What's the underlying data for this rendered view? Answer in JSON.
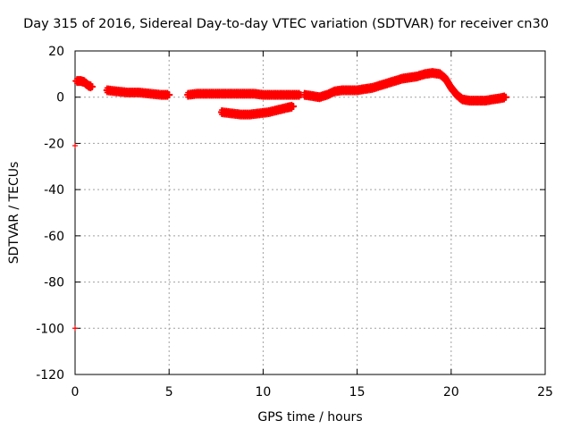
{
  "chart_data": {
    "type": "scatter",
    "title": "Day 315 of 2016, Sidereal Day-to-day VTEC variation (SDTVAR) for receiver cn30",
    "xlabel": "GPS time / hours",
    "ylabel": "SDTVAR / TECUs",
    "xlim": [
      0,
      25
    ],
    "ylim": [
      -120,
      20
    ],
    "xticks": [
      0,
      5,
      10,
      15,
      20,
      25
    ],
    "yticks": [
      20,
      0,
      -20,
      -40,
      -60,
      -80,
      -100,
      -120
    ],
    "grid": true,
    "marker": "+",
    "series_color": "#ff0000",
    "series": [
      {
        "name": "isolated points",
        "points": [
          [
            0.0,
            7
          ],
          [
            0.0,
            -21
          ],
          [
            0.0,
            -100
          ]
        ]
      },
      {
        "name": "arc 1",
        "points": [
          [
            0.1,
            7
          ],
          [
            0.3,
            7
          ],
          [
            0.5,
            6.5
          ],
          [
            0.7,
            5
          ],
          [
            0.9,
            4.5
          ]
        ]
      },
      {
        "name": "arc 2",
        "points": [
          [
            1.7,
            3
          ],
          [
            2.2,
            2.5
          ],
          [
            2.8,
            2
          ],
          [
            3.4,
            2
          ],
          [
            4.0,
            1.5
          ],
          [
            4.6,
            1
          ],
          [
            5.0,
            1
          ]
        ]
      },
      {
        "name": "arc 3",
        "points": [
          [
            6.0,
            1
          ],
          [
            6.5,
            1.5
          ],
          [
            7.0,
            1.5
          ],
          [
            7.5,
            1.5
          ],
          [
            8.0,
            1.5
          ],
          [
            8.5,
            1.5
          ],
          [
            9.0,
            1.5
          ],
          [
            9.5,
            1.5
          ],
          [
            10.0,
            1
          ],
          [
            10.5,
            1
          ],
          [
            11.0,
            1
          ],
          [
            11.5,
            1
          ],
          [
            12.0,
            1
          ]
        ]
      },
      {
        "name": "arc 4",
        "points": [
          [
            7.8,
            -6.5
          ],
          [
            8.3,
            -7
          ],
          [
            8.8,
            -7.5
          ],
          [
            9.3,
            -7.5
          ],
          [
            9.8,
            -7
          ],
          [
            10.3,
            -6.5
          ],
          [
            10.8,
            -5.5
          ],
          [
            11.3,
            -4.5
          ],
          [
            11.6,
            -4
          ]
        ]
      },
      {
        "name": "arc 5",
        "points": [
          [
            12.2,
            1
          ],
          [
            12.6,
            0.5
          ],
          [
            13.0,
            0
          ],
          [
            13.4,
            1
          ],
          [
            13.8,
            2.5
          ],
          [
            14.2,
            3
          ],
          [
            14.6,
            3
          ],
          [
            15.0,
            3
          ],
          [
            15.4,
            3.5
          ],
          [
            15.8,
            4
          ],
          [
            16.2,
            5
          ],
          [
            16.6,
            6
          ],
          [
            17.0,
            7
          ],
          [
            17.4,
            8
          ],
          [
            17.8,
            8.5
          ],
          [
            18.2,
            9
          ],
          [
            18.6,
            10
          ],
          [
            19.0,
            10.5
          ],
          [
            19.4,
            10
          ],
          [
            19.7,
            8
          ],
          [
            20.0,
            4
          ],
          [
            20.3,
            1
          ],
          [
            20.6,
            -1
          ],
          [
            21.0,
            -1.5
          ],
          [
            21.4,
            -1.5
          ],
          [
            21.8,
            -1.5
          ],
          [
            22.2,
            -1
          ],
          [
            22.6,
            -0.5
          ],
          [
            22.9,
            0
          ]
        ]
      }
    ]
  }
}
